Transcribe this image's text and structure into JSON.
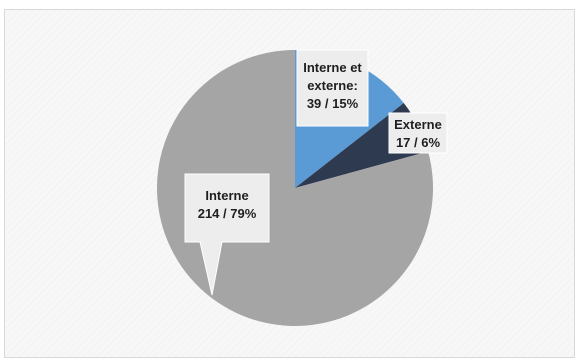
{
  "chart_data": {
    "type": "pie",
    "start_angle_deg": 0,
    "direction": "clockwise",
    "slices": [
      {
        "name": "Interne et externe",
        "value": 39,
        "percent": 15,
        "color": "#5b9bd5",
        "label_lines": [
          "Interne et",
          "externe:",
          "39 / 15%"
        ]
      },
      {
        "name": "Externe",
        "value": 17,
        "percent": 6,
        "color": "#2e3a50",
        "label_lines": [
          "Externe",
          "17 / 6%"
        ]
      },
      {
        "name": "Interne",
        "value": 214,
        "percent": 79,
        "color": "#a5a5a5",
        "label_lines": [
          "Interne",
          "214 / 79%"
        ]
      }
    ],
    "label_box_color": "#ededed",
    "label_box_border": "#ffffff"
  }
}
